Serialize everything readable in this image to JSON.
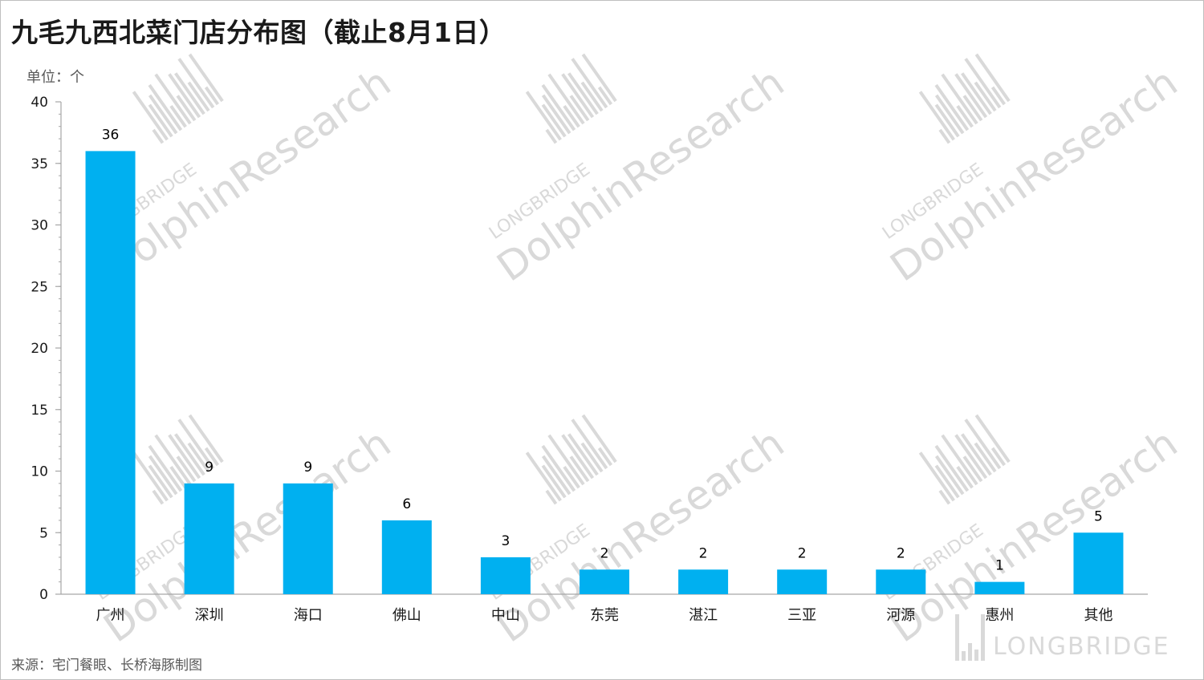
{
  "title": "九毛九西北菜门店分布图（截止8月1日）",
  "source": "来源：宅门餐眼、长桥海豚制图",
  "watermark": {
    "brand_small": "LONGBRIDGE",
    "brand_large": "DolphinResearch",
    "logo_text": "LONGBRIDGE",
    "logo_icon": "longbridge-bars-icon"
  },
  "colors": {
    "bar": "#00b0f0",
    "axis": "#a6a6a6",
    "watermark": "#d9d9d9"
  },
  "chart_data": {
    "type": "bar",
    "unit_label": "单位：个",
    "categories": [
      "广州",
      "深圳",
      "海口",
      "佛山",
      "中山",
      "东莞",
      "湛江",
      "三亚",
      "河源",
      "惠州",
      "其他"
    ],
    "values": [
      36,
      9,
      9,
      6,
      3,
      2,
      2,
      2,
      2,
      1,
      5
    ],
    "ylim": [
      0,
      40
    ],
    "yticks": [
      0,
      5,
      10,
      15,
      20,
      25,
      30,
      35,
      40
    ],
    "grid": false,
    "data_labels": true
  }
}
